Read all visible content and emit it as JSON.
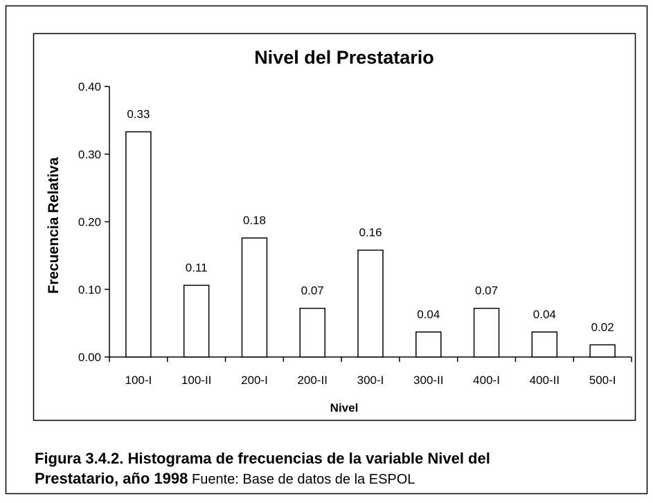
{
  "chart_data": {
    "type": "bar",
    "title": "Nivel del Prestatario",
    "x_label": "Nivel",
    "y_label": "Frecuencia Relativa",
    "categories": [
      "100-I",
      "100-II",
      "200-I",
      "200-II",
      "300-I",
      "300-II",
      "400-I",
      "400-II",
      "500-I"
    ],
    "values": [
      0.333,
      0.106,
      0.176,
      0.072,
      0.158,
      0.037,
      0.072,
      0.037,
      0.018
    ],
    "value_labels": [
      "0.33",
      "0.11",
      "0.18",
      "0.07",
      "0.16",
      "0.04",
      "0.07",
      "0.04",
      "0.02"
    ],
    "color": "#ffffff",
    "ylim": [
      0,
      0.4
    ],
    "yticks": [
      {
        "value": 0,
        "label": "0.00"
      },
      {
        "value": 0.1,
        "label": "0.10"
      },
      {
        "value": 0.2,
        "label": "0.20"
      },
      {
        "value": 0.3,
        "label": "0.30"
      },
      {
        "value": 0.4,
        "label": "0.40"
      }
    ]
  },
  "caption": [
    "Figura 3.4.2. Histograma de frecuencias de la variable Nivel del",
    "Prestatario, año 1998"
  ],
  "source": "Fuente: Base de datos de la ESPOL"
}
